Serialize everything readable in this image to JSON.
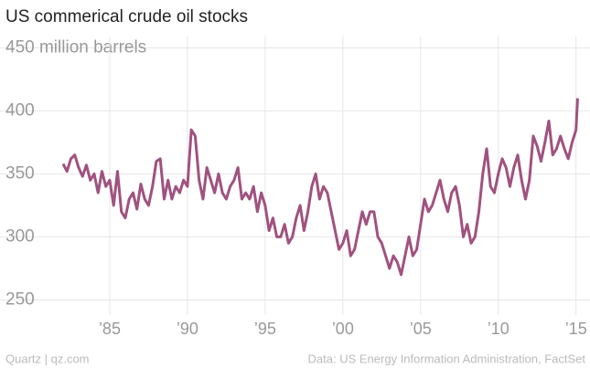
{
  "chart_data": {
    "type": "line",
    "title": "US commerical crude oil stocks",
    "footer": {
      "left": "Quartz | qz.com",
      "right": "Data: US Energy Information Administration, FactSet"
    },
    "color": "#a0527f",
    "grid": true,
    "xlim": [
      1980,
      2015.9
    ],
    "ylim": [
      238,
      459
    ],
    "xticks": [
      {
        "value": 1985,
        "label": "’85"
      },
      {
        "value": 1990,
        "label": "’90"
      },
      {
        "value": 1995,
        "label": "’95"
      },
      {
        "value": 2000,
        "label": "’00"
      },
      {
        "value": 2005,
        "label": "’05"
      },
      {
        "value": 2010,
        "label": "’10"
      },
      {
        "value": 2015,
        "label": "’15"
      }
    ],
    "yticks": [
      250,
      300,
      350,
      400,
      {
        "value": 450,
        "label": "450 million barrels"
      }
    ],
    "x": [
      1982,
      1982.25,
      1982.5,
      1982.75,
      1983,
      1983.25,
      1983.5,
      1983.75,
      1984,
      1984.25,
      1984.5,
      1984.75,
      1985,
      1985.25,
      1985.5,
      1985.75,
      1986,
      1986.25,
      1986.5,
      1986.75,
      1987,
      1987.25,
      1987.5,
      1987.75,
      1988,
      1988.25,
      1988.5,
      1988.75,
      1989,
      1989.25,
      1989.5,
      1989.75,
      1990,
      1990.25,
      1990.5,
      1990.75,
      1991,
      1991.25,
      1991.5,
      1991.75,
      1992,
      1992.25,
      1992.5,
      1992.75,
      1993,
      1993.25,
      1993.5,
      1993.75,
      1994,
      1994.25,
      1994.5,
      1994.75,
      1995,
      1995.25,
      1995.5,
      1995.75,
      1996,
      1996.25,
      1996.5,
      1996.75,
      1997,
      1997.25,
      1997.5,
      1997.75,
      1998,
      1998.25,
      1998.5,
      1998.75,
      1999,
      1999.25,
      1999.5,
      1999.75,
      2000,
      2000.25,
      2000.5,
      2000.75,
      2001,
      2001.25,
      2001.5,
      2001.75,
      2002,
      2002.25,
      2002.5,
      2002.75,
      2003,
      2003.25,
      2003.5,
      2003.75,
      2004,
      2004.25,
      2004.5,
      2004.75,
      2005,
      2005.25,
      2005.5,
      2005.75,
      2006,
      2006.25,
      2006.5,
      2006.75,
      2007,
      2007.25,
      2007.5,
      2007.75,
      2008,
      2008.25,
      2008.5,
      2008.75,
      2009,
      2009.25,
      2009.5,
      2009.75,
      2010,
      2010.25,
      2010.5,
      2010.75,
      2011,
      2011.25,
      2011.5,
      2011.75,
      2012,
      2012.25,
      2012.5,
      2012.75,
      2013,
      2013.25,
      2013.5,
      2013.75,
      2014,
      2014.25,
      2014.5,
      2014.75,
      2015,
      2015.1
    ],
    "values": [
      358,
      352,
      362,
      365,
      355,
      348,
      357,
      345,
      350,
      335,
      352,
      340,
      345,
      325,
      352,
      320,
      315,
      330,
      335,
      322,
      342,
      330,
      325,
      340,
      360,
      362,
      330,
      345,
      330,
      340,
      335,
      345,
      340,
      385,
      380,
      345,
      330,
      355,
      345,
      335,
      350,
      335,
      330,
      340,
      345,
      355,
      330,
      335,
      330,
      340,
      320,
      335,
      325,
      305,
      315,
      300,
      300,
      310,
      295,
      300,
      315,
      325,
      305,
      320,
      340,
      350,
      330,
      340,
      335,
      320,
      305,
      290,
      295,
      305,
      285,
      290,
      305,
      320,
      310,
      320,
      320,
      300,
      295,
      285,
      275,
      285,
      280,
      270,
      285,
      300,
      285,
      290,
      310,
      330,
      320,
      325,
      335,
      345,
      330,
      320,
      335,
      340,
      325,
      300,
      310,
      295,
      300,
      320,
      350,
      370,
      340,
      335,
      350,
      362,
      355,
      340,
      355,
      365,
      345,
      330,
      345,
      380,
      372,
      360,
      375,
      392,
      365,
      370,
      380,
      370,
      362,
      375,
      385,
      410
    ]
  }
}
